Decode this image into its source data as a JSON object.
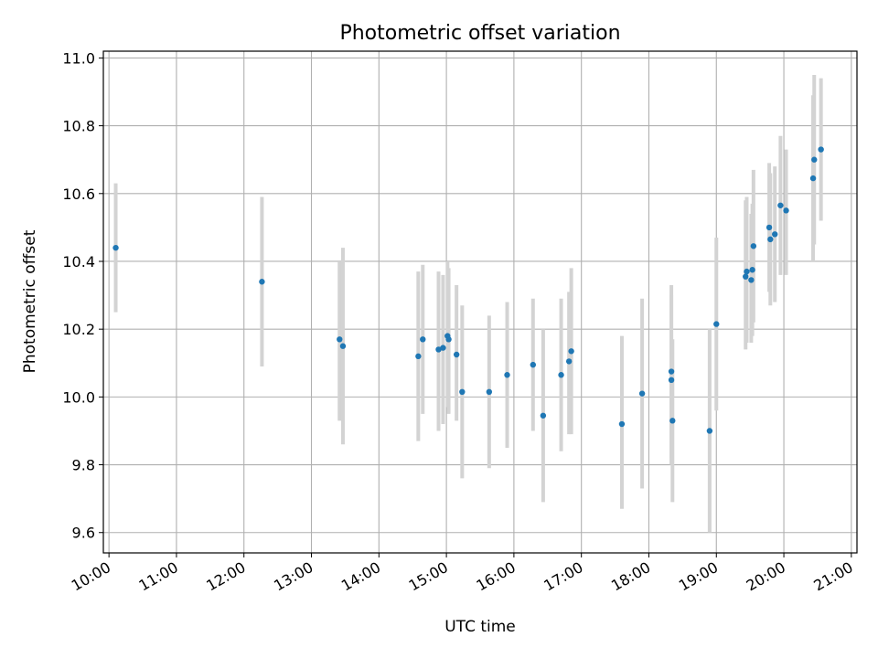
{
  "chart_data": {
    "type": "scatter",
    "title": "Photometric offset variation",
    "xlabel": "UTC time",
    "ylabel": "Photometric offset",
    "xlim": [
      "09:55",
      "21:05"
    ],
    "ylim": [
      9.54,
      11.02
    ],
    "grid": true,
    "x_ticks": [
      "10:00",
      "11:00",
      "12:00",
      "13:00",
      "14:00",
      "15:00",
      "16:00",
      "17:00",
      "18:00",
      "19:00",
      "20:00",
      "21:00"
    ],
    "y_ticks": [
      "9.6",
      "9.8",
      "10.0",
      "10.2",
      "10.4",
      "10.6",
      "10.8",
      "11.0"
    ],
    "y_tick_values": [
      9.6,
      9.8,
      10.0,
      10.2,
      10.4,
      10.6,
      10.8,
      11.0
    ],
    "colors": {
      "point": "#1f77b4",
      "errorbar": "#d3d3d3",
      "grid": "#b0b0b0"
    },
    "points": [
      {
        "x": "10:06",
        "y": 10.44,
        "ylo": 10.25,
        "yhi": 10.63
      },
      {
        "x": "12:16",
        "y": 10.34,
        "ylo": 10.09,
        "yhi": 10.59
      },
      {
        "x": "13:25",
        "y": 10.17,
        "ylo": 9.93,
        "yhi": 10.4
      },
      {
        "x": "13:28",
        "y": 10.15,
        "ylo": 9.86,
        "yhi": 10.44
      },
      {
        "x": "14:35",
        "y": 10.12,
        "ylo": 9.87,
        "yhi": 10.37
      },
      {
        "x": "14:39",
        "y": 10.17,
        "ylo": 9.95,
        "yhi": 10.39
      },
      {
        "x": "14:53",
        "y": 10.14,
        "ylo": 9.9,
        "yhi": 10.37
      },
      {
        "x": "14:57",
        "y": 10.145,
        "ylo": 9.92,
        "yhi": 10.36
      },
      {
        "x": "15:01",
        "y": 10.18,
        "ylo": 9.97,
        "yhi": 10.4
      },
      {
        "x": "15:02",
        "y": 10.17,
        "ylo": 9.95,
        "yhi": 10.38
      },
      {
        "x": "15:09",
        "y": 10.125,
        "ylo": 9.93,
        "yhi": 10.33
      },
      {
        "x": "15:14",
        "y": 10.015,
        "ylo": 9.76,
        "yhi": 10.27
      },
      {
        "x": "15:38",
        "y": 10.015,
        "ylo": 9.79,
        "yhi": 10.24
      },
      {
        "x": "15:54",
        "y": 10.065,
        "ylo": 9.85,
        "yhi": 10.28
      },
      {
        "x": "16:17",
        "y": 10.095,
        "ylo": 9.9,
        "yhi": 10.29
      },
      {
        "x": "16:26",
        "y": 9.945,
        "ylo": 9.69,
        "yhi": 10.2
      },
      {
        "x": "16:42",
        "y": 10.065,
        "ylo": 9.84,
        "yhi": 10.29
      },
      {
        "x": "16:49",
        "y": 10.105,
        "ylo": 9.89,
        "yhi": 10.31
      },
      {
        "x": "16:51",
        "y": 10.135,
        "ylo": 9.89,
        "yhi": 10.38
      },
      {
        "x": "17:36",
        "y": 9.92,
        "ylo": 9.67,
        "yhi": 10.18
      },
      {
        "x": "17:54",
        "y": 10.01,
        "ylo": 9.73,
        "yhi": 10.29
      },
      {
        "x": "18:20",
        "y": 10.075,
        "ylo": 9.82,
        "yhi": 10.33
      },
      {
        "x": "18:20",
        "y": 10.05,
        "ylo": 9.8,
        "yhi": 10.3
      },
      {
        "x": "18:21",
        "y": 9.93,
        "ylo": 9.69,
        "yhi": 10.17
      },
      {
        "x": "18:54",
        "y": 9.9,
        "ylo": 9.6,
        "yhi": 10.2
      },
      {
        "x": "19:00",
        "y": 10.215,
        "ylo": 9.96,
        "yhi": 10.47
      },
      {
        "x": "19:26",
        "y": 10.355,
        "ylo": 10.14,
        "yhi": 10.58
      },
      {
        "x": "19:27",
        "y": 10.37,
        "ylo": 10.16,
        "yhi": 10.59
      },
      {
        "x": "19:31",
        "y": 10.345,
        "ylo": 10.16,
        "yhi": 10.54
      },
      {
        "x": "19:32",
        "y": 10.375,
        "ylo": 10.18,
        "yhi": 10.57
      },
      {
        "x": "19:33",
        "y": 10.445,
        "ylo": 10.22,
        "yhi": 10.67
      },
      {
        "x": "19:47",
        "y": 10.5,
        "ylo": 10.31,
        "yhi": 10.69
      },
      {
        "x": "19:48",
        "y": 10.465,
        "ylo": 10.27,
        "yhi": 10.66
      },
      {
        "x": "19:52",
        "y": 10.48,
        "ylo": 10.28,
        "yhi": 10.68
      },
      {
        "x": "19:57",
        "y": 10.565,
        "ylo": 10.36,
        "yhi": 10.77
      },
      {
        "x": "20:02",
        "y": 10.55,
        "ylo": 10.36,
        "yhi": 10.73
      },
      {
        "x": "20:26",
        "y": 10.645,
        "ylo": 10.4,
        "yhi": 10.89
      },
      {
        "x": "20:27",
        "y": 10.7,
        "ylo": 10.45,
        "yhi": 10.95
      },
      {
        "x": "20:33",
        "y": 10.73,
        "ylo": 10.52,
        "yhi": 10.94
      }
    ]
  }
}
